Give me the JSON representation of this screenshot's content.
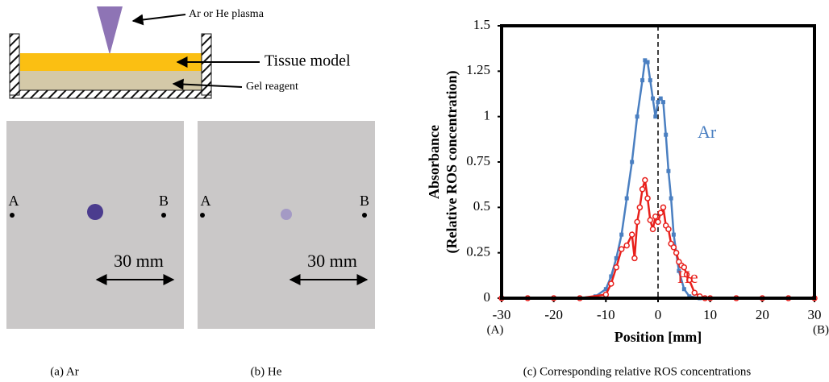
{
  "diagram": {
    "plasma_label": "Ar or He plasma",
    "tissue_label": "Tissue model",
    "gel_label": "Gel reagent"
  },
  "panels": [
    {
      "left_mark": "A",
      "right_mark": "B",
      "scale_label": "30 mm",
      "caption": "(a) Ar"
    },
    {
      "left_mark": "A",
      "right_mark": "B",
      "scale_label": "30 mm",
      "caption": "(b) He"
    }
  ],
  "chart_data": {
    "type": "line",
    "caption": "(c) Corresponding relative ROS concentrations",
    "x_label": "Position [mm]",
    "y_label": [
      "Absorbance",
      "(Relative ROS concentration)"
    ],
    "xlim": [
      -30,
      30
    ],
    "xticks": [
      -30,
      -20,
      -10,
      0,
      10,
      20,
      30
    ],
    "xtick_notes": [
      "(A)",
      "(B)"
    ],
    "ylim": [
      0,
      1.5
    ],
    "yticks": [
      0,
      0.25,
      0.5,
      0.75,
      1,
      1.25,
      1.5
    ],
    "reference_line_x": 0,
    "series": [
      {
        "name": "Ar",
        "color": "#4a7fc1",
        "marker": "square",
        "x": [
          -30,
          -25,
          -20,
          -15,
          -12,
          -10,
          -9,
          -8,
          -7,
          -6,
          -5,
          -4,
          -3,
          -2.5,
          -2,
          -1.5,
          -1,
          -0.5,
          0,
          0.5,
          1,
          1.5,
          2,
          2.5,
          3,
          4,
          5,
          6,
          8,
          10,
          15,
          20,
          25,
          30
        ],
        "values": [
          0,
          0,
          0,
          0,
          0.01,
          0.05,
          0.12,
          0.22,
          0.35,
          0.55,
          0.75,
          1.0,
          1.2,
          1.31,
          1.3,
          1.2,
          1.1,
          1.0,
          1.08,
          1.1,
          1.08,
          0.9,
          0.7,
          0.55,
          0.35,
          0.15,
          0.05,
          0.01,
          0,
          0,
          0,
          0,
          0,
          0
        ]
      },
      {
        "name": "He",
        "color": "#e8201c",
        "marker": "circle",
        "x": [
          -30,
          -25,
          -20,
          -15,
          -10,
          -9,
          -8,
          -7,
          -6,
          -5,
          -4.5,
          -4,
          -3.5,
          -3,
          -2.5,
          -2,
          -1.5,
          -1,
          -0.5,
          0,
          0.5,
          1,
          1.5,
          2,
          2.5,
          3,
          3.5,
          4,
          4.5,
          5,
          5.5,
          6,
          7,
          8,
          9,
          10,
          15,
          20,
          25,
          30
        ],
        "values": [
          0,
          0,
          0,
          0,
          0.02,
          0.08,
          0.17,
          0.27,
          0.29,
          0.35,
          0.22,
          0.42,
          0.5,
          0.6,
          0.65,
          0.55,
          0.43,
          0.38,
          0.45,
          0.42,
          0.47,
          0.5,
          0.4,
          0.38,
          0.3,
          0.28,
          0.25,
          0.2,
          0.18,
          0.17,
          0.13,
          0.1,
          0.03,
          0.01,
          0,
          0,
          0,
          0,
          0,
          0
        ]
      }
    ]
  }
}
